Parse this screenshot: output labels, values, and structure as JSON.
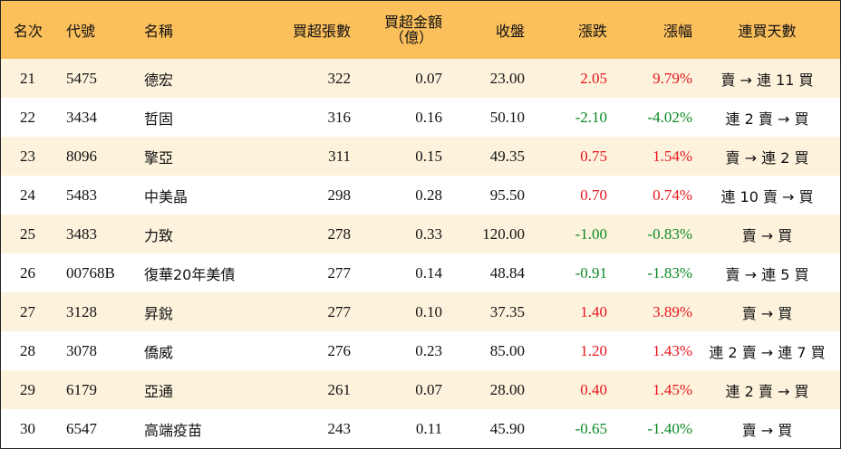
{
  "headers": {
    "rank": "名次",
    "code": "代號",
    "name": "名稱",
    "net_buy_lots": "買超張數",
    "net_buy_amount_line1": "買超金額",
    "net_buy_amount_line2": "（億）",
    "close": "收盤",
    "change": "漲跌",
    "change_pct": "漲幅",
    "streak": "連買天數"
  },
  "colors": {
    "header_bg": "#fbbf5c",
    "stripe_bg": "#fdf3dd",
    "up": "#e8141c",
    "down": "#0b8a22"
  },
  "rows": [
    {
      "rank": "21",
      "code": "5475",
      "name": "德宏",
      "lots": "322",
      "amount": "0.07",
      "close": "23.00",
      "change": "2.05",
      "pct": "9.79%",
      "dir": "up",
      "streak": "賣 → 連 11 買"
    },
    {
      "rank": "22",
      "code": "3434",
      "name": "哲固",
      "lots": "316",
      "amount": "0.16",
      "close": "50.10",
      "change": "-2.10",
      "pct": "-4.02%",
      "dir": "down",
      "streak": "連 2 賣 → 買"
    },
    {
      "rank": "23",
      "code": "8096",
      "name": "擎亞",
      "lots": "311",
      "amount": "0.15",
      "close": "49.35",
      "change": "0.75",
      "pct": "1.54%",
      "dir": "up",
      "streak": "賣 → 連 2 買"
    },
    {
      "rank": "24",
      "code": "5483",
      "name": "中美晶",
      "lots": "298",
      "amount": "0.28",
      "close": "95.50",
      "change": "0.70",
      "pct": "0.74%",
      "dir": "up",
      "streak": "連 10 賣 → 買"
    },
    {
      "rank": "25",
      "code": "3483",
      "name": "力致",
      "lots": "278",
      "amount": "0.33",
      "close": "120.00",
      "change": "-1.00",
      "pct": "-0.83%",
      "dir": "down",
      "streak": "賣 → 買"
    },
    {
      "rank": "26",
      "code": "00768B",
      "name": "復華20年美債",
      "lots": "277",
      "amount": "0.14",
      "close": "48.84",
      "change": "-0.91",
      "pct": "-1.83%",
      "dir": "down",
      "streak": "賣 → 連 5 買"
    },
    {
      "rank": "27",
      "code": "3128",
      "name": "昇銳",
      "lots": "277",
      "amount": "0.10",
      "close": "37.35",
      "change": "1.40",
      "pct": "3.89%",
      "dir": "up",
      "streak": "賣 → 買"
    },
    {
      "rank": "28",
      "code": "3078",
      "name": "僑威",
      "lots": "276",
      "amount": "0.23",
      "close": "85.00",
      "change": "1.20",
      "pct": "1.43%",
      "dir": "up",
      "streak": "連 2 賣 → 連 7 買"
    },
    {
      "rank": "29",
      "code": "6179",
      "name": "亞通",
      "lots": "261",
      "amount": "0.07",
      "close": "28.00",
      "change": "0.40",
      "pct": "1.45%",
      "dir": "up",
      "streak": "連 2 賣 → 買"
    },
    {
      "rank": "30",
      "code": "6547",
      "name": "高端疫苗",
      "lots": "243",
      "amount": "0.11",
      "close": "45.90",
      "change": "-0.65",
      "pct": "-1.40%",
      "dir": "down",
      "streak": "賣 → 買"
    }
  ]
}
